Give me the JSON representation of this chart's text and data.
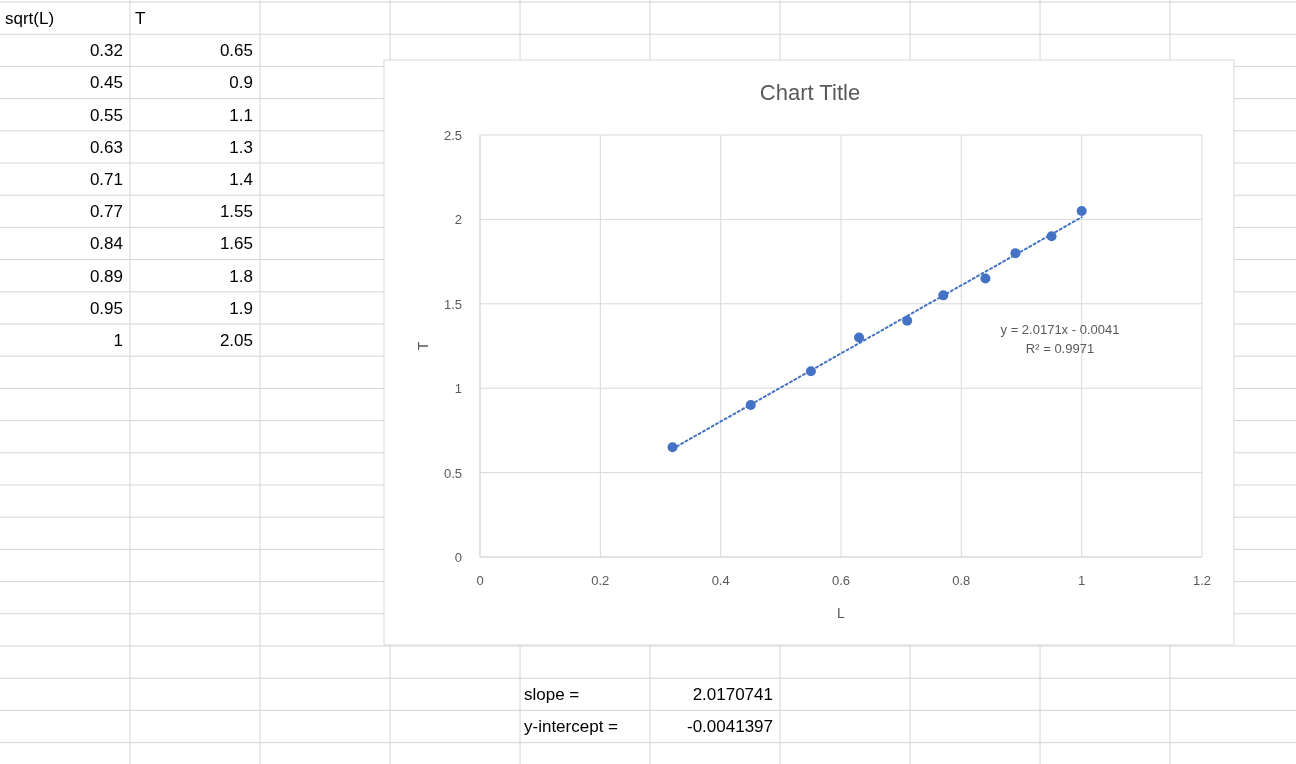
{
  "chart_data": [
    {
      "type": "other",
      "annotations": [
        "sqrt(L)",
        "T",
        "0.32",
        "0.65",
        "0.45",
        "0.9",
        "0.55",
        "1.1",
        "0.63",
        "1.3",
        "0.71",
        "1.4",
        "0.77",
        "1.55",
        "0.84",
        "1.65",
        "0.89",
        "1.8",
        "0.95",
        "1.9",
        "1",
        "2.05",
        "slope =",
        "2.0170741",
        "y-intercept =",
        "-0.0041397"
      ]
    },
    {
      "type": "scatter",
      "title": "Chart Title",
      "xlabel": "L",
      "ylabel": "T",
      "x": [
        0.32,
        0.45,
        0.55,
        0.63,
        0.71,
        0.77,
        0.84,
        0.89,
        0.95,
        1
      ],
      "series": [
        {
          "type": "scatter",
          "color": "#4472c4",
          "values": [
            0.65,
            0.9,
            1.1,
            1.3,
            1.4,
            1.55,
            1.65,
            1.8,
            1.9,
            2.05
          ]
        },
        {
          "type": "line",
          "color": "#4472c4",
          "x": [
            0.32,
            1
          ],
          "values": [
            0.641,
            2.013
          ],
          "line_style": "dotted",
          "marker": "none"
        }
      ],
      "marker": "circle",
      "xlim": [
        0,
        1.2
      ],
      "xticks": [
        0,
        0.2,
        0.4,
        0.6,
        0.8,
        1,
        1.2
      ],
      "ylim": [
        0,
        2.5
      ],
      "yticks": [
        0,
        0.5,
        1,
        1.5,
        2,
        2.5
      ],
      "grid": true,
      "annotations": [
        "y = 2.0171x - 0.0041",
        "R² = 0.9971"
      ]
    }
  ]
}
